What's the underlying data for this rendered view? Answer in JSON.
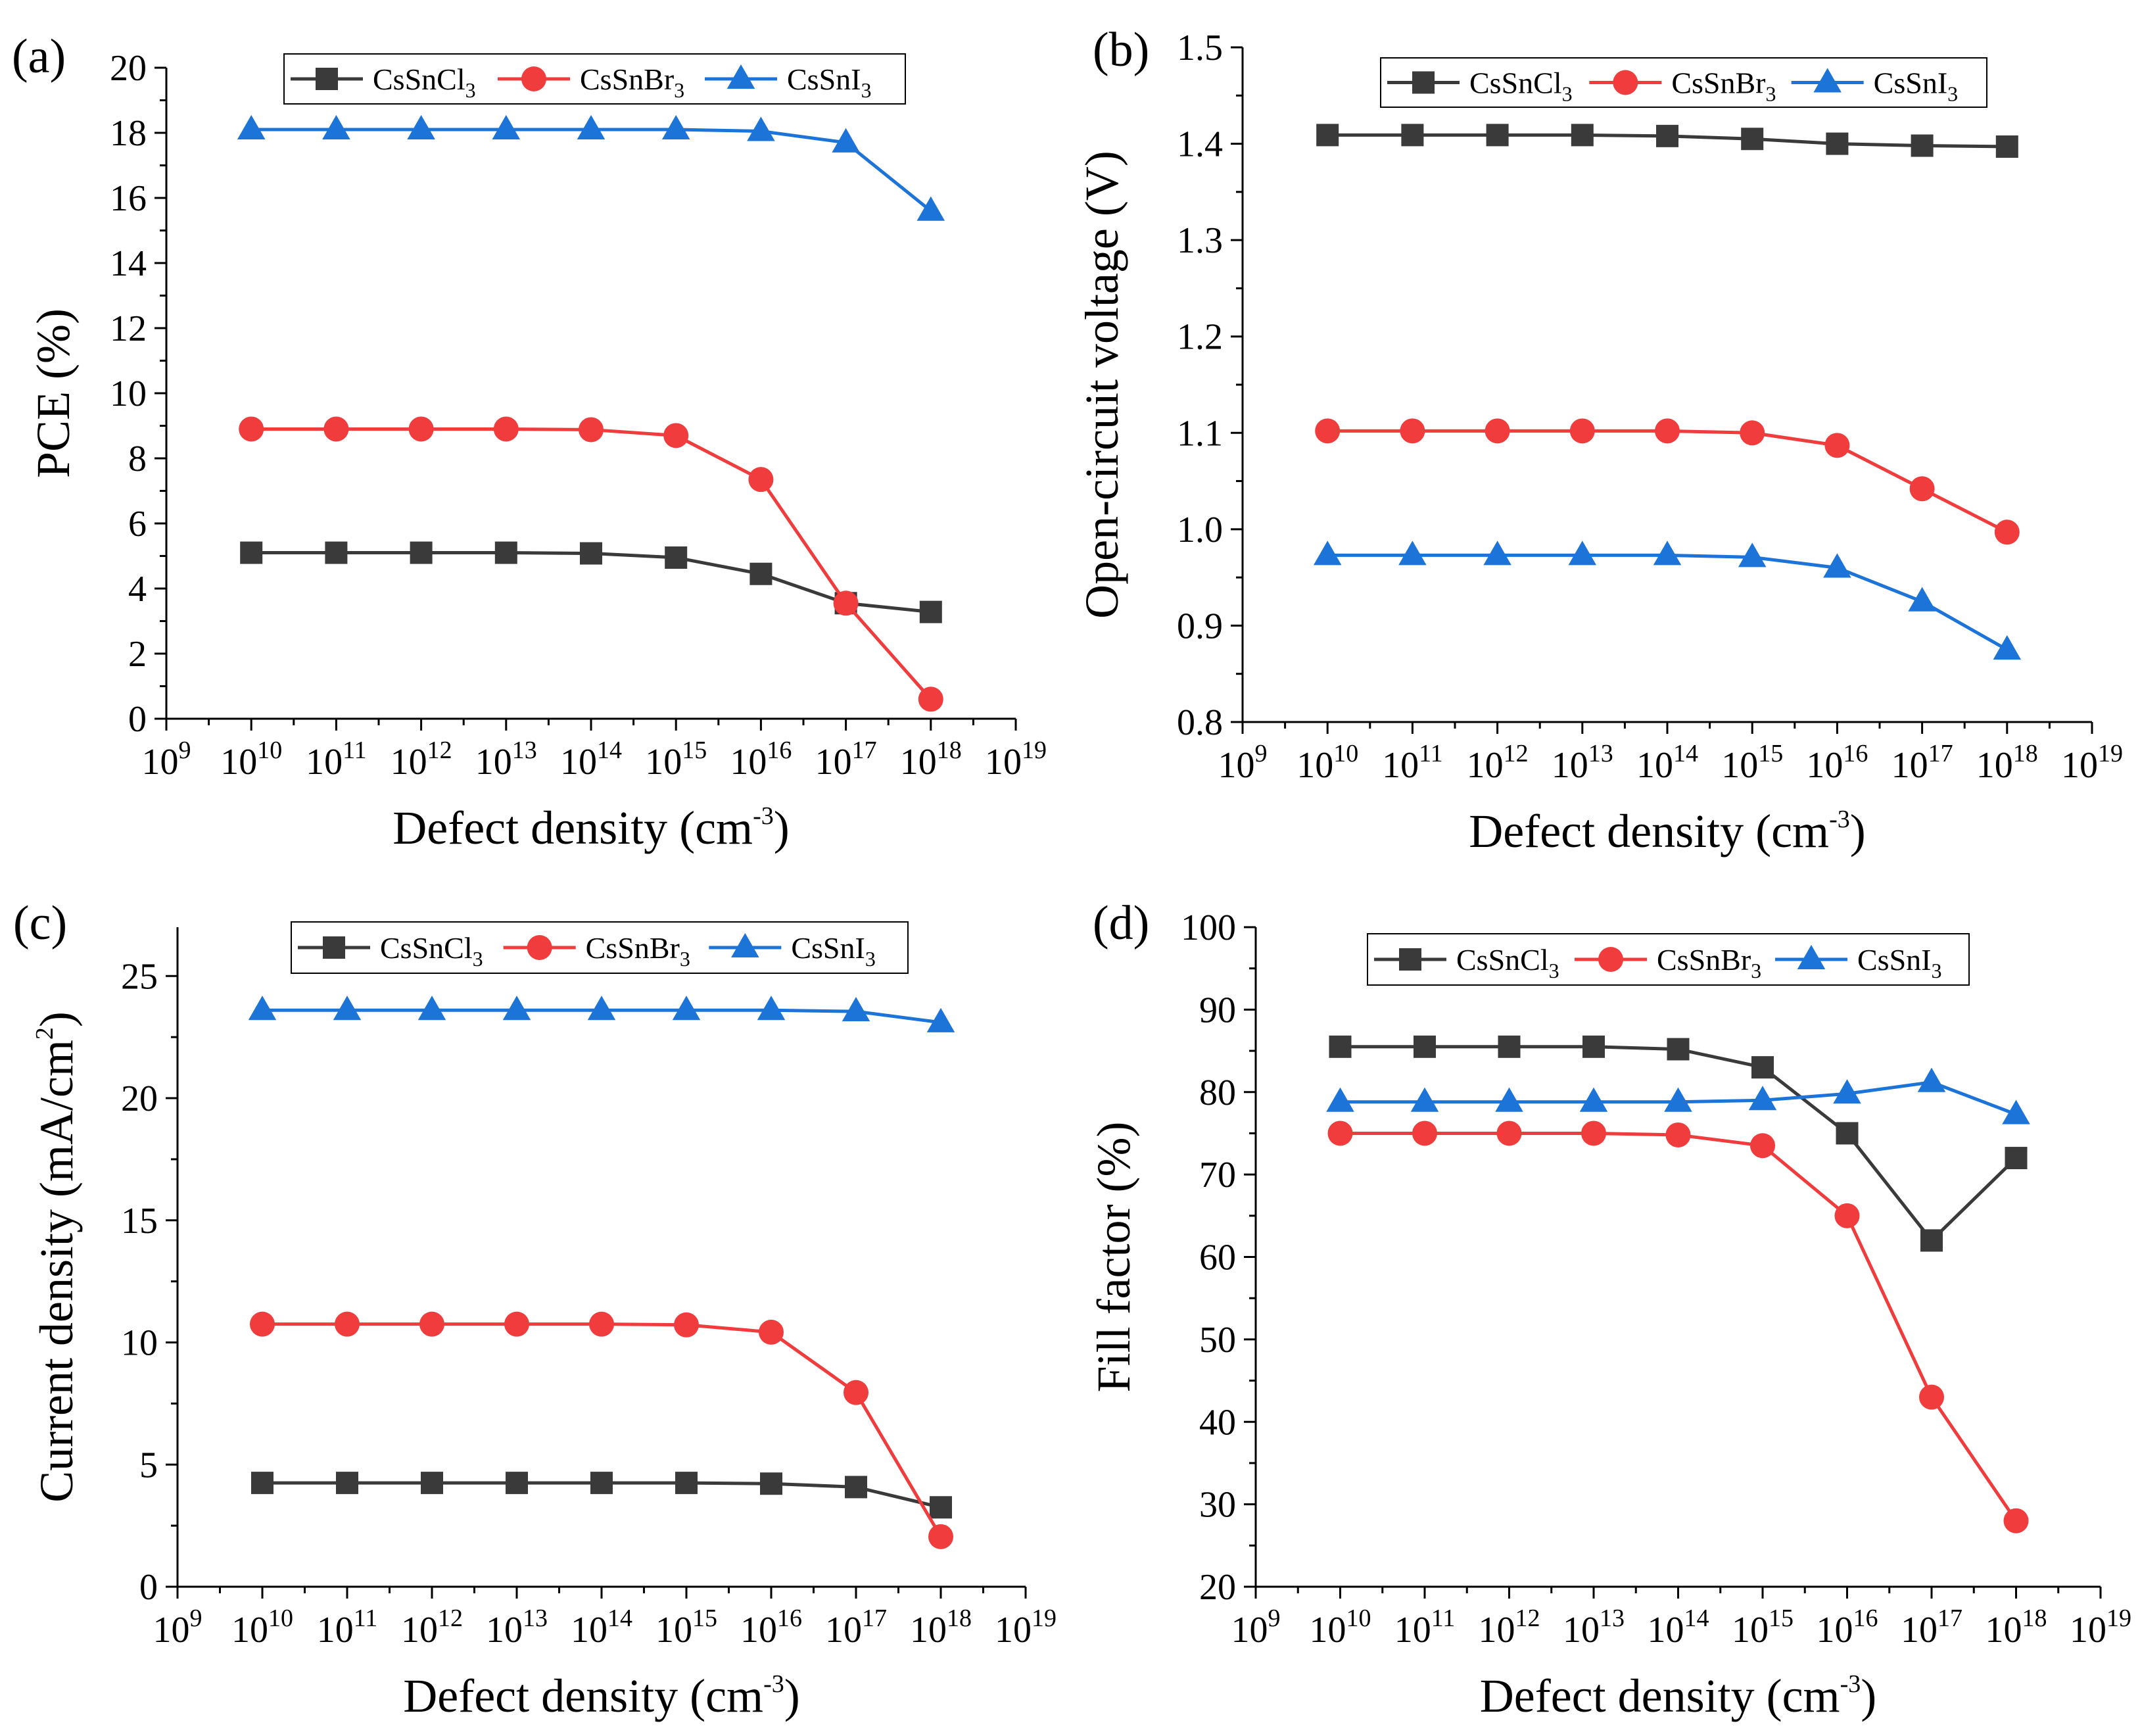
{
  "chart_data": [
    {
      "type": "line",
      "panel_label": "(a)",
      "xlabel": "Defect density (cm",
      "xlabel_sup": "-3",
      "xlabel_close": ")",
      "ylabel": "PCE (%)",
      "x_exponents": [
        9,
        10,
        11,
        12,
        13,
        14,
        15,
        16,
        17,
        18,
        19
      ],
      "x_tick_base": "10",
      "xlim_exp": [
        9,
        19
      ],
      "ylim": [
        0,
        20
      ],
      "y_ticks": [
        "0",
        "2",
        "4",
        "6",
        "8",
        "10",
        "12",
        "14",
        "16",
        "18",
        "20"
      ],
      "legend": [
        {
          "name": "CsSnCl",
          "sub": "3"
        },
        {
          "name": "CsSnBr",
          "sub": "3"
        },
        {
          "name": "CsSnI",
          "sub": "3"
        }
      ],
      "series": [
        {
          "name": "CsSnCl3",
          "marker": "square",
          "color": "#3a3a3a",
          "x_exp": [
            10,
            11,
            12,
            13,
            14,
            15,
            16,
            17,
            18
          ],
          "values": [
            5.1,
            5.1,
            5.1,
            5.1,
            5.08,
            4.95,
            4.45,
            3.55,
            3.28
          ]
        },
        {
          "name": "CsSnBr3",
          "marker": "circle",
          "color": "#f03c3c",
          "x_exp": [
            10,
            11,
            12,
            13,
            14,
            15,
            16,
            17,
            18
          ],
          "values": [
            8.9,
            8.9,
            8.9,
            8.9,
            8.88,
            8.7,
            7.35,
            3.55,
            0.6
          ]
        },
        {
          "name": "CsSnI3",
          "marker": "triangle",
          "color": "#1c74d9",
          "x_exp": [
            10,
            11,
            12,
            13,
            14,
            15,
            16,
            17,
            18
          ],
          "values": [
            18.1,
            18.1,
            18.1,
            18.1,
            18.1,
            18.1,
            18.05,
            17.7,
            15.6
          ]
        }
      ]
    },
    {
      "type": "line",
      "panel_label": "(b)",
      "xlabel": "Defect density (cm",
      "xlabel_sup": "-3",
      "xlabel_close": ")",
      "ylabel": "Open-circuit voltage (V)",
      "x_exponents": [
        9,
        10,
        11,
        12,
        13,
        14,
        15,
        16,
        17,
        18,
        19
      ],
      "x_tick_base": "10",
      "xlim_exp": [
        9,
        19
      ],
      "ylim": [
        0.8,
        1.5
      ],
      "y_ticks": [
        "0.8",
        "0.9",
        "1.0",
        "1.1",
        "1.2",
        "1.3",
        "1.4",
        "1.5"
      ],
      "legend": [
        {
          "name": "CsSnCl",
          "sub": "3"
        },
        {
          "name": "CsSnBr",
          "sub": "3"
        },
        {
          "name": "CsSnI",
          "sub": "3"
        }
      ],
      "series": [
        {
          "name": "CsSnCl3",
          "marker": "square",
          "color": "#3a3a3a",
          "x_exp": [
            10,
            11,
            12,
            13,
            14,
            15,
            16,
            17,
            18
          ],
          "values": [
            1.409,
            1.409,
            1.409,
            1.409,
            1.408,
            1.405,
            1.4,
            1.398,
            1.397
          ]
        },
        {
          "name": "CsSnBr3",
          "marker": "circle",
          "color": "#f03c3c",
          "x_exp": [
            10,
            11,
            12,
            13,
            14,
            15,
            16,
            17,
            18
          ],
          "values": [
            1.102,
            1.102,
            1.102,
            1.102,
            1.102,
            1.1,
            1.087,
            1.042,
            0.997
          ]
        },
        {
          "name": "CsSnI3",
          "marker": "triangle",
          "color": "#1c74d9",
          "x_exp": [
            10,
            11,
            12,
            13,
            14,
            15,
            16,
            17,
            18
          ],
          "values": [
            0.973,
            0.973,
            0.973,
            0.973,
            0.973,
            0.971,
            0.96,
            0.925,
            0.875
          ]
        }
      ]
    },
    {
      "type": "line",
      "panel_label": "(c)",
      "xlabel": "Defect density (cm",
      "xlabel_sup": "-3",
      "xlabel_close": ")",
      "ylabel": "Current density (mA/cm",
      "ylabel_sup": "2",
      "ylabel_close": ")",
      "x_exponents": [
        9,
        10,
        11,
        12,
        13,
        14,
        15,
        16,
        17,
        18,
        19
      ],
      "x_tick_base": "10",
      "xlim_exp": [
        9,
        19
      ],
      "ylim": [
        0,
        27
      ],
      "y_ticks": [
        "0",
        "5",
        "10",
        "15",
        "20",
        "25"
      ],
      "y_tick_values": [
        0,
        5,
        10,
        15,
        20,
        25
      ],
      "legend": [
        {
          "name": "CsSnCl",
          "sub": "3"
        },
        {
          "name": "CsSnBr",
          "sub": "3"
        },
        {
          "name": "CsSnI",
          "sub": "3"
        }
      ],
      "series": [
        {
          "name": "CsSnCl3",
          "marker": "square",
          "color": "#3a3a3a",
          "x_exp": [
            10,
            11,
            12,
            13,
            14,
            15,
            16,
            17,
            18
          ],
          "values": [
            4.25,
            4.25,
            4.25,
            4.25,
            4.25,
            4.25,
            4.22,
            4.08,
            3.25
          ]
        },
        {
          "name": "CsSnBr3",
          "marker": "circle",
          "color": "#f03c3c",
          "x_exp": [
            10,
            11,
            12,
            13,
            14,
            15,
            16,
            17,
            18
          ],
          "values": [
            10.75,
            10.75,
            10.75,
            10.75,
            10.75,
            10.72,
            10.42,
            7.95,
            2.05
          ]
        },
        {
          "name": "CsSnI3",
          "marker": "triangle",
          "color": "#1c74d9",
          "x_exp": [
            10,
            11,
            12,
            13,
            14,
            15,
            16,
            17,
            18
          ],
          "values": [
            23.6,
            23.6,
            23.6,
            23.6,
            23.6,
            23.6,
            23.6,
            23.55,
            23.1
          ]
        }
      ]
    },
    {
      "type": "line",
      "panel_label": "(d)",
      "xlabel": "Defect density (cm",
      "xlabel_sup": "-3",
      "xlabel_close": ")",
      "ylabel": "Fill factor (%)",
      "x_exponents": [
        9,
        10,
        11,
        12,
        13,
        14,
        15,
        16,
        17,
        18,
        19
      ],
      "x_tick_base": "10",
      "xlim_exp": [
        9,
        19
      ],
      "ylim": [
        20,
        100
      ],
      "y_ticks": [
        "20",
        "30",
        "40",
        "50",
        "60",
        "70",
        "80",
        "90",
        "100"
      ],
      "legend": [
        {
          "name": "CsSnCl",
          "sub": "3"
        },
        {
          "name": "CsSnBr",
          "sub": "3"
        },
        {
          "name": "CsSnI",
          "sub": "3"
        }
      ],
      "series": [
        {
          "name": "CsSnCl3",
          "marker": "square",
          "color": "#3a3a3a",
          "x_exp": [
            10,
            11,
            12,
            13,
            14,
            15,
            16,
            17,
            18
          ],
          "values": [
            85.5,
            85.5,
            85.5,
            85.5,
            85.2,
            83.0,
            75.0,
            62.0,
            72.0
          ]
        },
        {
          "name": "CsSnBr3",
          "marker": "circle",
          "color": "#f03c3c",
          "x_exp": [
            10,
            11,
            12,
            13,
            14,
            15,
            16,
            17,
            18
          ],
          "values": [
            75.0,
            75.0,
            75.0,
            75.0,
            74.8,
            73.5,
            65.0,
            43.0,
            28.0
          ]
        },
        {
          "name": "CsSnI3",
          "marker": "triangle",
          "color": "#1c74d9",
          "x_exp": [
            10,
            11,
            12,
            13,
            14,
            15,
            16,
            17,
            18
          ],
          "values": [
            78.8,
            78.8,
            78.8,
            78.8,
            78.8,
            79.0,
            79.8,
            81.2,
            77.3
          ]
        }
      ]
    }
  ]
}
